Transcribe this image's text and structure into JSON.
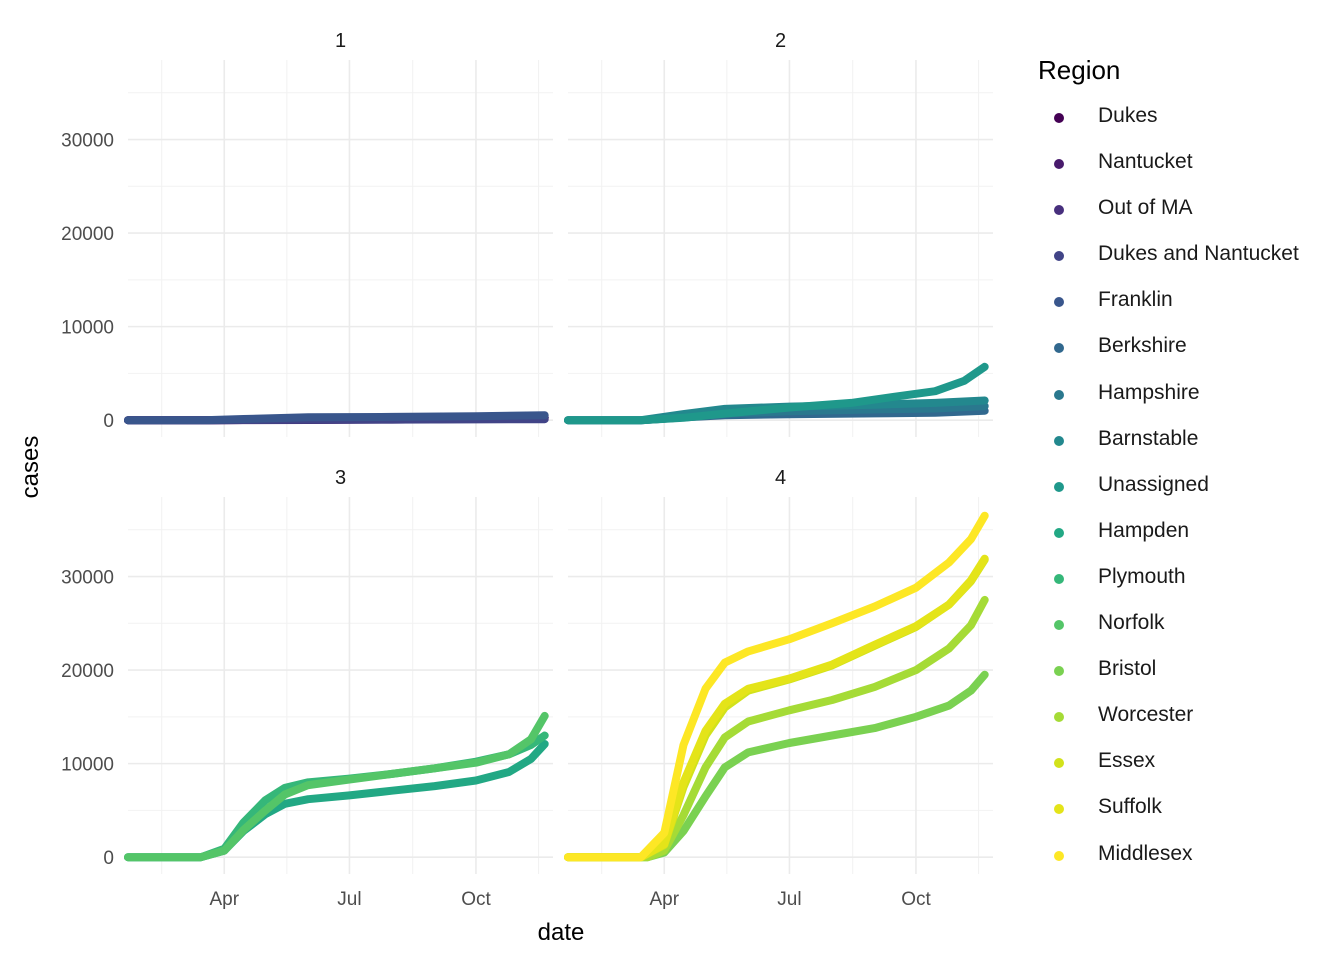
{
  "chart_data": {
    "type": "line",
    "facet_by": "cluster",
    "panels": [
      {
        "label": "1",
        "members": [
          "Dukes",
          "Nantucket",
          "Out of MA",
          "Dukes and Nantucket",
          "Franklin"
        ]
      },
      {
        "label": "2",
        "members": [
          "Berkshire",
          "Hampshire",
          "Barnstable",
          "Unassigned"
        ]
      },
      {
        "label": "3",
        "members": [
          "Hampden",
          "Plymouth",
          "Norfolk"
        ]
      },
      {
        "label": "4",
        "members": [
          "Bristol",
          "Worcester",
          "Essex",
          "Suffolk",
          "Middlesex"
        ]
      }
    ],
    "xlabel": "date",
    "ylabel": "cases",
    "x_ticks": [
      "Apr",
      "Jul",
      "Oct"
    ],
    "x_tick_dates": [
      "2020-04-01",
      "2020-07-01",
      "2020-10-01"
    ],
    "xlim": [
      "2020-01-22",
      "2020-11-26"
    ],
    "y_ticks": [
      0,
      10000,
      20000,
      30000
    ],
    "ylim": [
      -1800,
      38500
    ],
    "grid": true,
    "legend": {
      "title": "Region",
      "position": "right"
    },
    "series": [
      {
        "name": "Dukes",
        "panel": "1",
        "color": "#440154",
        "x": [
          "2020-01-22",
          "2020-03-20",
          "2020-04-15",
          "2020-06-01",
          "2020-08-01",
          "2020-10-01",
          "2020-11-20"
        ],
        "y": [
          0,
          0,
          20,
          45,
          90,
          170,
          260
        ]
      },
      {
        "name": "Nantucket",
        "panel": "1",
        "color": "#481A6C",
        "x": [
          "2020-01-22",
          "2020-03-20",
          "2020-04-15",
          "2020-06-01",
          "2020-08-01",
          "2020-10-01",
          "2020-11-20"
        ],
        "y": [
          0,
          0,
          10,
          20,
          60,
          140,
          240
        ]
      },
      {
        "name": "Out of MA",
        "panel": "1",
        "color": "#472F7D",
        "x": [
          "2020-01-22",
          "2020-03-20",
          "2020-04-15",
          "2020-06-01",
          "2020-08-01",
          "2020-10-01",
          "2020-11-20"
        ],
        "y": [
          0,
          0,
          60,
          170,
          210,
          250,
          280
        ]
      },
      {
        "name": "Dukes and Nantucket",
        "panel": "1",
        "color": "#414487",
        "x": [
          "2020-01-22",
          "2020-03-20",
          "2020-04-15",
          "2020-06-01",
          "2020-08-01",
          "2020-10-01",
          "2020-11-20"
        ],
        "y": [
          0,
          0,
          15,
          40,
          60,
          80,
          100
        ]
      },
      {
        "name": "Franklin",
        "panel": "1",
        "color": "#39568C",
        "x": [
          "2020-01-22",
          "2020-03-20",
          "2020-04-15",
          "2020-06-01",
          "2020-08-01",
          "2020-10-01",
          "2020-11-20"
        ],
        "y": [
          0,
          5,
          120,
          310,
          350,
          420,
          520
        ]
      },
      {
        "name": "Berkshire",
        "panel": "2",
        "color": "#31688E",
        "x": [
          "2020-01-22",
          "2020-03-15",
          "2020-04-15",
          "2020-05-15",
          "2020-07-01",
          "2020-09-01",
          "2020-10-15",
          "2020-11-20"
        ],
        "y": [
          0,
          0,
          300,
          520,
          640,
          720,
          800,
          1000
        ]
      },
      {
        "name": "Hampshire",
        "panel": "2",
        "color": "#2A788E",
        "x": [
          "2020-01-22",
          "2020-03-15",
          "2020-04-15",
          "2020-05-15",
          "2020-07-01",
          "2020-09-01",
          "2020-10-15",
          "2020-11-20"
        ],
        "y": [
          0,
          0,
          300,
          700,
          950,
          1150,
          1250,
          1500
        ]
      },
      {
        "name": "Barnstable",
        "panel": "2",
        "color": "#23888E",
        "x": [
          "2020-01-22",
          "2020-03-15",
          "2020-04-15",
          "2020-05-15",
          "2020-07-01",
          "2020-09-01",
          "2020-10-15",
          "2020-11-20"
        ],
        "y": [
          0,
          0,
          650,
          1200,
          1450,
          1650,
          1850,
          2100
        ]
      },
      {
        "name": "Unassigned",
        "panel": "2",
        "color": "#1F988B",
        "x": [
          "2020-01-22",
          "2020-03-15",
          "2020-04-15",
          "2020-05-15",
          "2020-07-01",
          "2020-08-15",
          "2020-09-15",
          "2020-10-15",
          "2020-11-05",
          "2020-11-20"
        ],
        "y": [
          0,
          0,
          250,
          700,
          1350,
          1850,
          2500,
          3100,
          4200,
          5700
        ]
      },
      {
        "name": "Hampden",
        "panel": "3",
        "color": "#22A884",
        "x": [
          "2020-01-22",
          "2020-03-15",
          "2020-04-01",
          "2020-04-15",
          "2020-05-01",
          "2020-05-15",
          "2020-06-01",
          "2020-07-01",
          "2020-08-01",
          "2020-09-01",
          "2020-10-01",
          "2020-10-25",
          "2020-11-10",
          "2020-11-20"
        ],
        "y": [
          0,
          0,
          700,
          2800,
          4600,
          5700,
          6200,
          6600,
          7100,
          7600,
          8200,
          9100,
          10500,
          12100
        ]
      },
      {
        "name": "Plymouth",
        "panel": "3",
        "color": "#35B779",
        "x": [
          "2020-01-22",
          "2020-03-15",
          "2020-04-01",
          "2020-04-15",
          "2020-05-01",
          "2020-05-15",
          "2020-06-01",
          "2020-07-01",
          "2020-08-01",
          "2020-09-01",
          "2020-10-01",
          "2020-10-25",
          "2020-11-10",
          "2020-11-20"
        ],
        "y": [
          0,
          0,
          900,
          3700,
          6100,
          7400,
          8000,
          8400,
          8900,
          9500,
          10200,
          11000,
          12000,
          13000
        ]
      },
      {
        "name": "Norfolk",
        "panel": "3",
        "color": "#54C568",
        "x": [
          "2020-01-22",
          "2020-03-15",
          "2020-04-01",
          "2020-04-15",
          "2020-05-01",
          "2020-05-15",
          "2020-06-01",
          "2020-07-01",
          "2020-08-01",
          "2020-09-01",
          "2020-10-01",
          "2020-10-25",
          "2020-11-10",
          "2020-11-20"
        ],
        "y": [
          0,
          0,
          700,
          2900,
          5000,
          6700,
          7700,
          8300,
          8900,
          9500,
          10100,
          11000,
          12600,
          15100
        ]
      },
      {
        "name": "Bristol",
        "panel": "4",
        "color": "#7AD151",
        "x": [
          "2020-01-22",
          "2020-03-20",
          "2020-04-01",
          "2020-04-15",
          "2020-05-01",
          "2020-05-15",
          "2020-06-01",
          "2020-07-01",
          "2020-08-01",
          "2020-09-01",
          "2020-10-01",
          "2020-10-25",
          "2020-11-10",
          "2020-11-20"
        ],
        "y": [
          0,
          0,
          500,
          2800,
          6500,
          9600,
          11200,
          12200,
          13000,
          13800,
          15000,
          16200,
          17800,
          19500
        ]
      },
      {
        "name": "Worcester",
        "panel": "4",
        "color": "#A5DB36",
        "x": [
          "2020-01-22",
          "2020-03-20",
          "2020-04-01",
          "2020-04-15",
          "2020-05-01",
          "2020-05-15",
          "2020-06-01",
          "2020-07-01",
          "2020-08-01",
          "2020-09-01",
          "2020-10-01",
          "2020-10-25",
          "2020-11-10",
          "2020-11-20"
        ],
        "y": [
          0,
          0,
          700,
          4500,
          9600,
          12800,
          14500,
          15700,
          16800,
          18200,
          20000,
          22300,
          24800,
          27500
        ]
      },
      {
        "name": "Essex",
        "panel": "4",
        "color": "#D2E21B",
        "x": [
          "2020-01-22",
          "2020-03-15",
          "2020-04-01",
          "2020-04-15",
          "2020-05-01",
          "2020-05-15",
          "2020-06-01",
          "2020-07-01",
          "2020-08-01",
          "2020-09-01",
          "2020-10-01",
          "2020-10-25",
          "2020-11-10",
          "2020-11-20"
        ],
        "y": [
          0,
          0,
          1300,
          7500,
          13000,
          16000,
          17800,
          19000,
          20500,
          22600,
          24600,
          27000,
          29500,
          31800
        ]
      },
      {
        "name": "Suffolk",
        "panel": "4",
        "color": "#E4E419",
        "x": [
          "2020-01-22",
          "2020-03-15",
          "2020-04-01",
          "2020-04-15",
          "2020-05-01",
          "2020-05-15",
          "2020-06-01",
          "2020-07-01",
          "2020-08-01",
          "2020-09-01",
          "2020-10-01",
          "2020-10-25",
          "2020-11-10",
          "2020-11-20"
        ],
        "y": [
          0,
          0,
          1400,
          8000,
          13500,
          16400,
          18000,
          19100,
          20600,
          22700,
          24700,
          27000,
          29600,
          31900
        ]
      },
      {
        "name": "Middlesex",
        "panel": "4",
        "color": "#FDE725",
        "x": [
          "2020-01-22",
          "2020-03-15",
          "2020-04-01",
          "2020-04-15",
          "2020-05-01",
          "2020-05-15",
          "2020-06-01",
          "2020-07-01",
          "2020-08-01",
          "2020-09-01",
          "2020-10-01",
          "2020-10-25",
          "2020-11-10",
          "2020-11-20"
        ],
        "y": [
          0,
          0,
          2600,
          12000,
          18000,
          20800,
          22000,
          23300,
          25000,
          26800,
          28800,
          31500,
          34000,
          36500
        ]
      }
    ]
  }
}
